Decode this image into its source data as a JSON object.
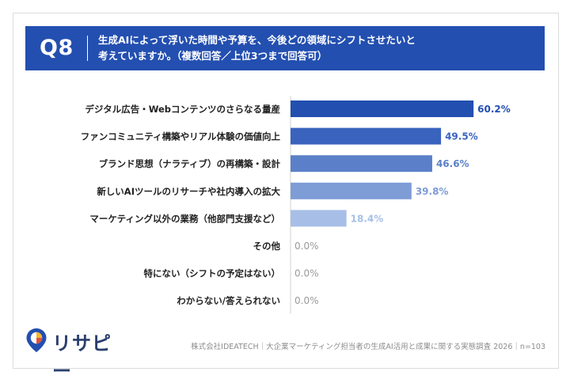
{
  "question": {
    "number": "Q8",
    "line1": "生成AIによって浮いた時間や予算を、今後どの領域にシフトさせたいと",
    "line2": "考えていますか。（複数回答／上位3つまで回答可）"
  },
  "brand": {
    "logo_text": "リサピー"
  },
  "footer": {
    "source": "株式会社IDEATECH｜大企業マーケティング担当者の生成AI活用と成果に関する実態調査 2026｜n=103"
  },
  "colors": {
    "banner": "#234fb0",
    "bars": [
      "#234fb0",
      "#3a63be",
      "#5b80c9",
      "#7e9cd6",
      "#a7bfe7",
      "#c8d6ef",
      "#c8d6ef",
      "#c8d6ef"
    ],
    "labels": [
      "#234fb0",
      "#3a63be",
      "#5b80c9",
      "#7e9cd6",
      "#a7bfe7",
      "#9a9a9a",
      "#9a9a9a",
      "#9a9a9a"
    ]
  },
  "chart_data": {
    "type": "bar",
    "orientation": "horizontal",
    "categories": [
      "デジタル広告・Webコンテンツのさらなる量産",
      "ファンコミュニティ構築やリアル体験の価値向上",
      "ブランド思想（ナラティブ）の再構築・設計",
      "新しいAIツールのリサーチや社内導入の拡大",
      "マーケティング以外の業務（他部門支援など）",
      "その他",
      "特にない（シフトの予定はない）",
      "わからない/答えられない"
    ],
    "values": [
      60.2,
      49.5,
      46.6,
      39.8,
      18.4,
      0.0,
      0.0,
      0.0
    ],
    "value_labels": [
      "60.2%",
      "49.5%",
      "46.6%",
      "39.8%",
      "18.4%",
      "0.0%",
      "0.0%",
      "0.0%"
    ],
    "unit": "%",
    "xlim": [
      0,
      100
    ],
    "grid": false,
    "legend": "none"
  }
}
